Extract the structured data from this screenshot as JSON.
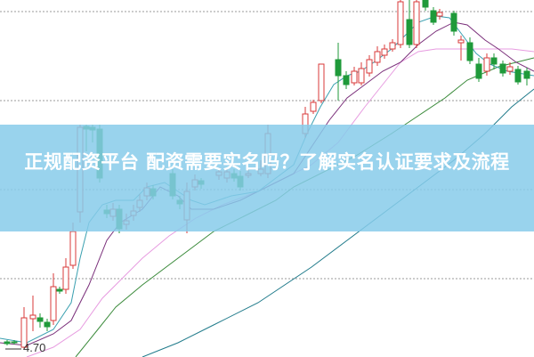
{
  "article": {
    "title": "正规配资平台 配资需要实名吗？了解实名认证要求及流程"
  },
  "chart": {
    "type": "candlestick",
    "price_label": "4.70",
    "colors": {
      "up": "#d93a3a",
      "down": "#1f9a3a",
      "ma5": "#3aa0b0",
      "ma10": "#7a2f7a",
      "ma20": "#e79be0",
      "ma30": "#3a8a3a",
      "ma60": "#1f7a8a",
      "banner": "#87cbea"
    }
  }
}
